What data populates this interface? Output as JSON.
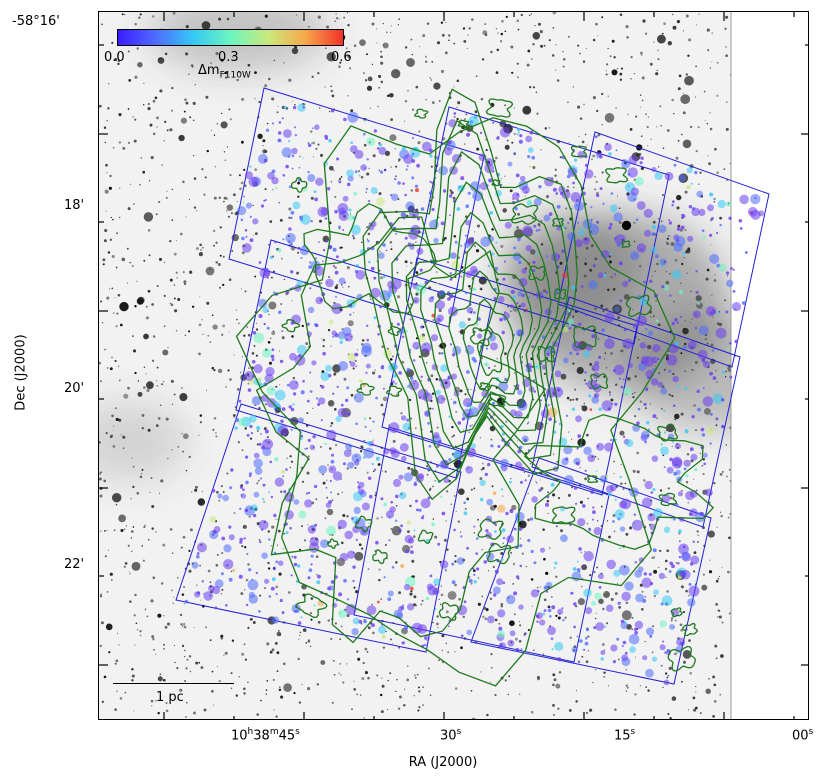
{
  "axes": {
    "ylabel": "Dec (J2000)",
    "xlabel": "RA (J2000)",
    "y_ticks": [
      "-58°16'",
      "18'",
      "20'",
      "22'"
    ],
    "x_ticks": [
      {
        "h": "10",
        "m": "38",
        "s": "45"
      },
      {
        "s": "30"
      },
      {
        "s": "15"
      },
      {
        "s": "00"
      }
    ]
  },
  "colorbar": {
    "ticks": [
      "0.0",
      "0.3",
      "0.6"
    ],
    "label_main": "Δm",
    "label_sub": "F110W",
    "colors": [
      "#3a1cff",
      "#4f6bff",
      "#35c8f5",
      "#6cf5c0",
      "#c9e97b",
      "#f7a84c",
      "#f2322a"
    ]
  },
  "scale_bar": {
    "label": "1 pc"
  },
  "overlay": {
    "field_outline_color": "#1f1fd6",
    "contour_color": "#1e7a1e",
    "image_style": "inverted grayscale star field"
  }
}
